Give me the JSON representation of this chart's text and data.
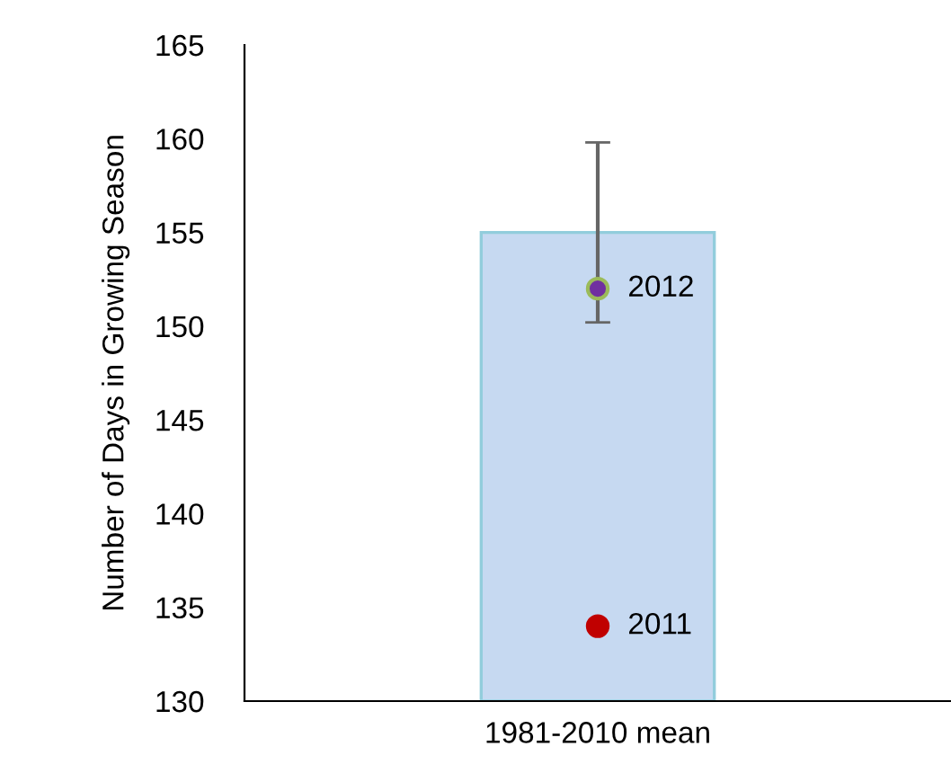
{
  "chart_data": {
    "type": "bar",
    "ylabel": "Number of Days in Growing Season",
    "categories": [
      "1981-2010 mean"
    ],
    "series": [
      {
        "color": "#c6d9f1",
        "values": [
          155
        ],
        "errors": [
          4.8
        ]
      },
      {
        "type": "scatter",
        "name": "2011",
        "color": "#c00000",
        "x": [
          "1981-2010 mean"
        ],
        "values": [
          134
        ]
      },
      {
        "type": "scatter",
        "name": "2012",
        "color": "#7030a0",
        "x": [
          "1981-2010 mean"
        ],
        "values": [
          152
        ]
      }
    ],
    "ylim": [
      130,
      165
    ],
    "yticks": [
      130,
      135,
      140,
      145,
      150,
      155,
      160,
      165
    ],
    "marker": "circle",
    "grid": false,
    "legend": false
  }
}
